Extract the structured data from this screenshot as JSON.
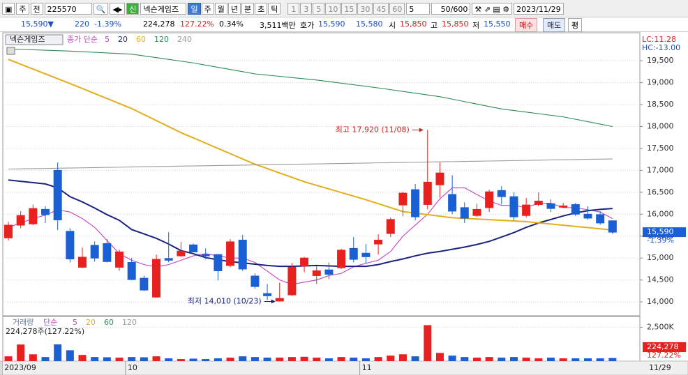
{
  "toolbar": {
    "market": "주",
    "prev": "전",
    "code": "225570",
    "new_badge": "신",
    "name": "넥슨게임즈",
    "periods": [
      "일",
      "주",
      "월",
      "년",
      "분",
      "초",
      "틱"
    ],
    "intervals": [
      "1",
      "3",
      "5",
      "10",
      "15",
      "30",
      "45",
      "60"
    ],
    "count": "5",
    "range": "50/600",
    "date": "2023/11/29"
  },
  "quote": {
    "price": "15,590▼",
    "change": "220",
    "change_pct": "-1.39%",
    "volume": "224,278",
    "volume_ratio": "127.22%",
    "turnover": "0.34%",
    "amount": "3,511백만",
    "ask_label": "호가",
    "ask": "15,590",
    "bid": "15,580",
    "open_label": "시",
    "open": "15,850",
    "high_label": "고",
    "high": "15,850",
    "low_label": "저",
    "low": "15,550",
    "buy": "매수",
    "sell": "매도",
    "avg": "평"
  },
  "chart_data": {
    "type": "candlestick",
    "legend_title": "넥슨게임즈",
    "ma_label": "종가 단순",
    "lc_label": "LC:11.28",
    "hc_label": "HC:-13.00",
    "high_annotation": "최고 17,920 (11/08)",
    "low_annotation": "최저 14,010 (10/23)",
    "current_price_label": "15,590",
    "current_change_label": "-1.39%",
    "current_date_label": "11/29",
    "up_color": "#e8201e",
    "down_color": "#1a5fd4",
    "grid": true,
    "categories": [
      "2023/09",
      null,
      null,
      null,
      null,
      null,
      null,
      null,
      null,
      null,
      "10",
      null,
      null,
      null,
      null,
      null,
      null,
      null,
      null,
      null,
      null,
      null,
      null,
      null,
      null,
      null,
      null,
      null,
      null,
      "11",
      null,
      null,
      null,
      null,
      null,
      null,
      null,
      null,
      null,
      null,
      null,
      null,
      null,
      null,
      null,
      null,
      null,
      null,
      null,
      null
    ],
    "open": [
      15460,
      15750,
      15780,
      16110,
      17000,
      15610,
      14790,
      15290,
      15330,
      14790,
      14900,
      14540,
      14110,
      14990,
      15050,
      15300,
      15080,
      15080,
      14830,
      15410,
      14590,
      14190,
      14020,
      14160,
      14820,
      14600,
      14730,
      14780,
      15220,
      15110,
      15320,
      15560,
      16210,
      16560,
      16220,
      16670,
      16450,
      16150,
      15970,
      16150,
      16540,
      16400,
      15970,
      16220,
      16240,
      16160,
      16220,
      16000,
      15990,
      15850
    ],
    "high": [
      15830,
      16070,
      16220,
      16180,
      17180,
      15680,
      15240,
      15380,
      15430,
      15190,
      15000,
      14600,
      15080,
      15590,
      15370,
      15330,
      15220,
      15080,
      15430,
      15530,
      14650,
      14410,
      14440,
      14890,
      15030,
      14810,
      14900,
      15210,
      15480,
      15320,
      15540,
      15920,
      16510,
      16690,
      17920,
      17180,
      16890,
      16270,
      16240,
      16560,
      16640,
      16500,
      16370,
      16500,
      16340,
      16260,
      16260,
      16180,
      16070,
      15850
    ],
    "low": [
      15400,
      15680,
      15750,
      15800,
      15640,
      14900,
      14770,
      14920,
      14900,
      14710,
      14490,
      14250,
      14100,
      14900,
      15030,
      15130,
      14970,
      14490,
      14790,
      14710,
      14300,
      14040,
      14010,
      14140,
      14680,
      14410,
      14520,
      14750,
      14900,
      14870,
      15080,
      15480,
      15950,
      15860,
      16110,
      16380,
      16000,
      15800,
      15940,
      16050,
      16220,
      15860,
      15920,
      16180,
      16050,
      16150,
      15960,
      15880,
      15760,
      15550
    ],
    "close": [
      15750,
      15970,
      16130,
      15990,
      15870,
      14980,
      15020,
      15000,
      14920,
      15140,
      14510,
      14270,
      14970,
      14950,
      15160,
      15140,
      15050,
      14710,
      15370,
      14750,
      14350,
      14140,
      14080,
      14790,
      15000,
      14710,
      14630,
      15180,
      14970,
      15030,
      15410,
      15880,
      16480,
      15940,
      16730,
      16940,
      16070,
      15910,
      16110,
      16510,
      16400,
      15940,
      16210,
      16300,
      16130,
      16190,
      16000,
      15910,
      15800,
      15590
    ],
    "ma": [
      {
        "name": "5",
        "color": "#c63fc2",
        "values": [
          15700,
          15800,
          15900,
          15980,
          16100,
          16050,
          15900,
          15700,
          15400,
          15100,
          14950,
          14850,
          14800,
          14850,
          14950,
          15050,
          15100,
          15050,
          15000,
          15000,
          14900,
          14700,
          14500,
          14400,
          14450,
          14500,
          14600,
          14650,
          14800,
          14880,
          14950,
          15150,
          15500,
          15750,
          16000,
          16350,
          16600,
          16600,
          16450,
          16300,
          16200,
          16200,
          16150,
          16250,
          16250,
          16150,
          16150,
          16100,
          16050,
          15900
        ]
      },
      {
        "name": "20",
        "color": "#1a237e",
        "values": [
          16780,
          16750,
          16720,
          16690,
          16600,
          16400,
          16280,
          16140,
          15990,
          15860,
          15650,
          15550,
          15450,
          15320,
          15170,
          15100,
          15010,
          14960,
          14920,
          14890,
          14860,
          14830,
          14810,
          14810,
          14820,
          14830,
          14820,
          14810,
          14810,
          14810,
          14850,
          14920,
          14980,
          15050,
          15110,
          15150,
          15200,
          15250,
          15310,
          15380,
          15480,
          15580,
          15700,
          15800,
          15880,
          15960,
          16030,
          16080,
          16110,
          16130
        ]
      },
      {
        "name": "60",
        "color": "#e3ae1c",
        "values": [
          19530,
          19420,
          19310,
          19200,
          19090,
          18980,
          18866,
          18752,
          18638,
          18524,
          18410,
          18272,
          18135,
          17997,
          17860,
          17740,
          17620,
          17500,
          17380,
          17260,
          17140,
          17040,
          16940,
          16840,
          16740,
          16658,
          16576,
          16494,
          16412,
          16330,
          16240,
          16150,
          16060,
          16025,
          15990,
          15955,
          15920,
          15905,
          15890,
          15875,
          15860,
          15845,
          15830,
          15803,
          15776,
          15749,
          15721,
          15694,
          15667,
          15640
        ]
      },
      {
        "name": "120",
        "color": "#2e8b57",
        "values": [
          19770,
          19760,
          19750,
          19740,
          19730,
          19720,
          19706,
          19692,
          19678,
          19664,
          19650,
          19610,
          19570,
          19530,
          19490,
          19450,
          19400,
          19350,
          19300,
          19250,
          19200,
          19172,
          19144,
          19116,
          19088,
          19060,
          19024,
          18988,
          18952,
          18916,
          18880,
          18840,
          18800,
          18760,
          18720,
          18680,
          18624,
          18568,
          18512,
          18456,
          18400,
          18364,
          18328,
          18292,
          18256,
          18220,
          18165,
          18110,
          18055,
          18000
        ]
      },
      {
        "name": "240",
        "color": "#9a9a9a",
        "values": [
          17030,
          17035,
          17039,
          17044,
          17049,
          17053,
          17058,
          17063,
          17068,
          17072,
          17077,
          17082,
          17086,
          17091,
          17096,
          17100,
          17105,
          17110,
          17114,
          17119,
          17124,
          17129,
          17133,
          17138,
          17143,
          17147,
          17152,
          17157,
          17161,
          17166,
          17171,
          17176,
          17180,
          17185,
          17190,
          17194,
          17199,
          17204,
          17208,
          17213,
          17218,
          17223,
          17227,
          17232,
          17237,
          17241,
          17246,
          17251,
          17255,
          17260
        ]
      }
    ],
    "ylim": [
      13700,
      20090
    ],
    "yticks": [
      {
        "value": 14000,
        "label": "14,000"
      },
      {
        "value": 14500,
        "label": "14,500"
      },
      {
        "value": 15000,
        "label": "15,000"
      },
      {
        "value": 15500,
        "label": "15,500"
      },
      {
        "value": 16000,
        "label": "16,000"
      },
      {
        "value": 16500,
        "label": "16,500"
      },
      {
        "value": 17000,
        "label": "17,000"
      },
      {
        "value": 17500,
        "label": "17,500"
      },
      {
        "value": 18000,
        "label": "18,000"
      },
      {
        "value": 18500,
        "label": "18,500"
      },
      {
        "value": 19000,
        "label": "19,000"
      },
      {
        "value": 19500,
        "label": "19,500"
      }
    ],
    "volume": {
      "legend": "거래량",
      "ma_label": "단순",
      "summary": "224,278주(127.22%)",
      "current_label": "224,278",
      "current_ratio": "127.22%",
      "ma": [
        {
          "name": "5",
          "color": "#c63fc2"
        },
        {
          "name": "20",
          "color": "#e3ae1c"
        },
        {
          "name": "60",
          "color": "#2e8b57"
        },
        {
          "name": "120",
          "color": "#9a9a9a"
        }
      ],
      "values": [
        350,
        1220,
        500,
        300,
        1230,
        800,
        450,
        300,
        280,
        250,
        300,
        280,
        350,
        200,
        150,
        180,
        150,
        200,
        250,
        350,
        300,
        250,
        250,
        300,
        320,
        250,
        200,
        300,
        250,
        200,
        300,
        400,
        500,
        350,
        2650,
        600,
        400,
        300,
        250,
        300,
        250,
        300,
        250,
        200,
        250,
        200,
        200,
        200,
        200,
        224.278
      ],
      "ylim": [
        0,
        3190
      ],
      "yticks": [
        {
          "value": 2500,
          "label": "2,500K"
        }
      ]
    }
  }
}
